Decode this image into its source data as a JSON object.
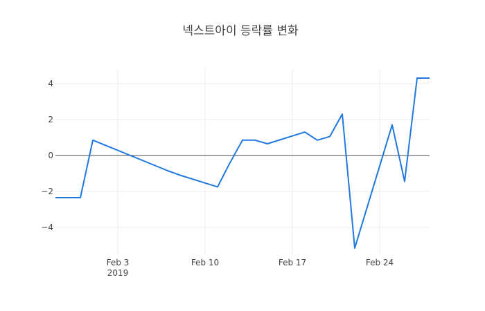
{
  "chart_data": {
    "type": "line",
    "title": "넥스트아이 등락률 변화",
    "xlabel": "",
    "ylabel": "",
    "x_range": [
      "2019-01-29",
      "2019-02-28"
    ],
    "ylim": [
      -5.5,
      4.8
    ],
    "grid": true,
    "zero_line": true,
    "x_ticks": [
      {
        "date": "2019-02-03",
        "label": "Feb 3",
        "sub": "2019"
      },
      {
        "date": "2019-02-10",
        "label": "Feb 10",
        "sub": ""
      },
      {
        "date": "2019-02-17",
        "label": "Feb 17",
        "sub": ""
      },
      {
        "date": "2019-02-24",
        "label": "Feb 24",
        "sub": ""
      }
    ],
    "y_ticks": [
      {
        "value": 4,
        "label": "4"
      },
      {
        "value": 2,
        "label": "2"
      },
      {
        "value": 0,
        "label": "0"
      },
      {
        "value": -2,
        "label": "−2"
      },
      {
        "value": -4,
        "label": "−4"
      }
    ],
    "series": [
      {
        "color": "#1f77e0",
        "x": [
          "2019-01-29",
          "2019-01-30",
          "2019-01-31",
          "2019-02-01",
          "2019-02-07",
          "2019-02-08",
          "2019-02-11",
          "2019-02-12",
          "2019-02-13",
          "2019-02-14",
          "2019-02-15",
          "2019-02-18",
          "2019-02-19",
          "2019-02-20",
          "2019-02-21",
          "2019-02-22",
          "2019-02-25",
          "2019-02-26",
          "2019-02-27",
          "2019-02-28"
        ],
        "y": [
          -2.35,
          -2.35,
          -2.35,
          0.85,
          -0.85,
          -1.1,
          -1.75,
          -0.4,
          0.85,
          0.85,
          0.65,
          1.3,
          0.85,
          1.05,
          2.3,
          -5.15,
          1.7,
          -1.45,
          4.3,
          4.3
        ]
      }
    ]
  }
}
